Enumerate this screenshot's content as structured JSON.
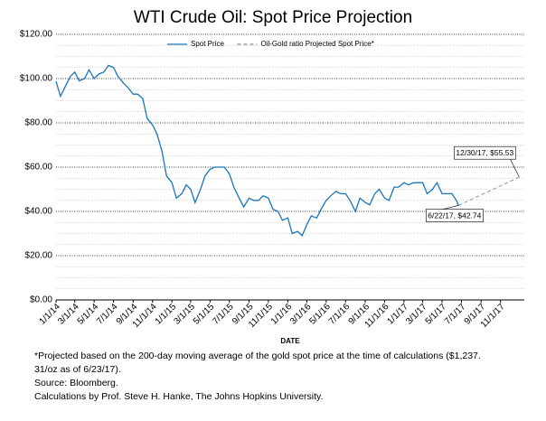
{
  "chart_data": {
    "type": "line",
    "title": "WTI Crude Oil: Spot Price Projection",
    "x_label": "DATE",
    "xlim": [
      "1/1/14",
      "1/15/18"
    ],
    "xticks": [
      "1/1/14",
      "3/1/14",
      "5/1/14",
      "7/1/14",
      "9/1/14",
      "11/1/14",
      "1/1/15",
      "3/1/15",
      "5/1/15",
      "7/1/15",
      "9/1/15",
      "11/1/15",
      "1/1/16",
      "3/1/16",
      "5/1/16",
      "7/1/16",
      "9/1/16",
      "11/1/16",
      "1/1/17",
      "3/1/17",
      "5/1/17",
      "7/1/17",
      "9/1/17",
      "11/1/17"
    ],
    "ylim": [
      0,
      120
    ],
    "yticks": [
      {
        "value": 0,
        "label": "$0.00"
      },
      {
        "value": 20,
        "label": "$20.00"
      },
      {
        "value": 40,
        "label": "$40.00"
      },
      {
        "value": 60,
        "label": "$60.00"
      },
      {
        "value": 80,
        "label": "$80.00"
      },
      {
        "value": 100,
        "label": "$100.00"
      },
      {
        "value": 120,
        "label": "$120.00"
      }
    ],
    "yminorticks": [
      5,
      10,
      15,
      25,
      30,
      35,
      45,
      50,
      55,
      65,
      70,
      75,
      85,
      90,
      95,
      105,
      110,
      115
    ],
    "grid": true,
    "legend": "top",
    "series": [
      {
        "name": "Spot Price",
        "color": "#1a75bb",
        "style": "solid",
        "x": [
          "1/1/14",
          "1/15/14",
          "2/1/14",
          "2/15/14",
          "3/1/14",
          "3/15/14",
          "4/1/14",
          "4/15/14",
          "5/1/14",
          "5/15/14",
          "6/1/14",
          "6/15/14",
          "7/1/14",
          "7/15/14",
          "8/1/14",
          "8/15/14",
          "9/1/14",
          "9/15/14",
          "10/1/14",
          "10/15/14",
          "11/1/14",
          "11/15/14",
          "12/1/14",
          "12/15/14",
          "1/1/15",
          "1/15/15",
          "2/1/15",
          "2/15/15",
          "3/1/15",
          "3/15/15",
          "4/1/15",
          "4/15/15",
          "5/1/15",
          "5/15/15",
          "6/1/15",
          "6/15/15",
          "7/1/15",
          "7/15/15",
          "8/1/15",
          "8/15/15",
          "9/1/15",
          "9/15/15",
          "10/1/15",
          "10/15/15",
          "11/1/15",
          "11/15/15",
          "12/1/15",
          "12/15/15",
          "1/1/16",
          "1/15/16",
          "2/1/16",
          "2/15/16",
          "3/1/16",
          "3/15/16",
          "4/1/16",
          "4/15/16",
          "5/1/16",
          "5/15/16",
          "6/1/16",
          "6/15/16",
          "7/1/16",
          "7/15/16",
          "8/1/16",
          "8/15/16",
          "9/1/16",
          "9/15/16",
          "10/1/16",
          "10/15/16",
          "11/1/16",
          "11/15/16",
          "12/1/16",
          "12/15/16",
          "1/1/17",
          "1/15/17",
          "2/1/17",
          "2/15/17",
          "3/1/17",
          "3/15/17",
          "4/1/17",
          "4/15/17",
          "5/1/17",
          "5/15/17",
          "6/1/17",
          "6/15/17",
          "6/22/17"
        ],
        "values": [
          98.7,
          92,
          97,
          101,
          103,
          99,
          100,
          104,
          100,
          102,
          103,
          106,
          105,
          101,
          98,
          96,
          93,
          93,
          91,
          82,
          79,
          75,
          67,
          56,
          53,
          46,
          48,
          52,
          50,
          44,
          50,
          56,
          59,
          60,
          60,
          60,
          57,
          51,
          46,
          42,
          46,
          45,
          45,
          47,
          46,
          41,
          40,
          36,
          37,
          30,
          31,
          29,
          34,
          38,
          37,
          41,
          45,
          47,
          49,
          48,
          48,
          45,
          40,
          46,
          44,
          43,
          48,
          50,
          46,
          45,
          51,
          51,
          53,
          52,
          53,
          53,
          53,
          48,
          50,
          53,
          48,
          48,
          48,
          45,
          42.74
        ]
      },
      {
        "name": "Oil-Gold ratio Projected Spot Price*",
        "color": "#888888",
        "style": "dashed",
        "x": [
          "6/22/17",
          "12/30/17"
        ],
        "values": [
          42.74,
          55.53
        ],
        "value_labels": [
          "6/22/17, $42.74",
          "12/30/17, $55.53"
        ]
      }
    ],
    "footnotes": [
      "*Projected based on the 200-day moving average of the gold spot price at the time of calculations ($1,237.",
      "31/oz as of 6/23/17).",
      "Source: Bloomberg.",
      "Calculations by Prof. Steve H. Hanke, The Johns Hopkins University."
    ]
  }
}
